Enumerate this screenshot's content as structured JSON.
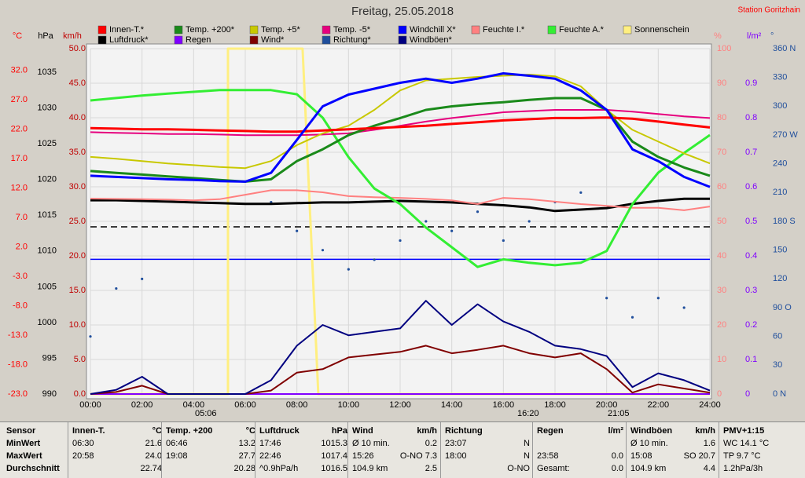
{
  "chart_data": {
    "type": "line",
    "title": "Freitag, 25.05.2018",
    "station": "Station Goritzhain",
    "annotations": [
      "05:06",
      "16:20",
      "21:05"
    ],
    "xlim": [
      0,
      24
    ],
    "xticks": [
      {
        "value": 0,
        "label": "00:00"
      },
      {
        "value": 2,
        "label": "02:00"
      },
      {
        "value": 4,
        "label": "04:00"
      },
      {
        "value": 6,
        "label": "06:00"
      },
      {
        "value": 8,
        "label": "08:00"
      },
      {
        "value": 10,
        "label": "10:00"
      },
      {
        "value": 12,
        "label": "12:00"
      },
      {
        "value": 14,
        "label": "14:00"
      },
      {
        "value": 16,
        "label": "16:00"
      },
      {
        "value": 18,
        "label": "18:00"
      },
      {
        "value": 20,
        "label": "20:00"
      },
      {
        "value": 22,
        "label": "22:00"
      },
      {
        "value": 24,
        "label": "24:00"
      }
    ],
    "grid": true,
    "x": [
      0,
      1,
      2,
      3,
      4,
      5,
      6,
      7,
      8,
      9,
      10,
      11,
      12,
      13,
      14,
      15,
      16,
      17,
      18,
      19,
      20,
      21,
      22,
      23,
      24
    ],
    "axes": [
      {
        "name": "°C",
        "color": "#ff0000",
        "side": "left",
        "lim": [
          -23,
          35.7
        ],
        "ticks": [
          {
            "value": -23,
            "label": "-23.0"
          },
          {
            "value": -18,
            "label": "-18.0"
          },
          {
            "value": -13,
            "label": "-13.0"
          },
          {
            "value": -8,
            "label": "-8.0"
          },
          {
            "value": -3,
            "label": "-3.0"
          },
          {
            "value": 2,
            "label": "2.0"
          },
          {
            "value": 7,
            "label": "7.0"
          },
          {
            "value": 12,
            "label": "12.0"
          },
          {
            "value": 17,
            "label": "17.0"
          },
          {
            "value": 22,
            "label": "22.0"
          },
          {
            "value": 27,
            "label": "27.0"
          },
          {
            "value": 32,
            "label": "32.0"
          }
        ]
      },
      {
        "name": "hPa",
        "color": "#000000",
        "side": "left",
        "lim": [
          990,
          1038.3
        ],
        "ticks": [
          990,
          995,
          1000,
          1005,
          1010,
          1015,
          1020,
          1025,
          1030,
          1035
        ]
      },
      {
        "name": "km/h",
        "color": "#c00000",
        "side": "left",
        "lim": [
          0,
          50
        ],
        "ticks": [
          {
            "value": 0,
            "label": "0.0"
          },
          {
            "value": 5,
            "label": "5.0"
          },
          {
            "value": 10,
            "label": "10.0"
          },
          {
            "value": 15,
            "label": "15.0"
          },
          {
            "value": 20,
            "label": "20.0"
          },
          {
            "value": 25,
            "label": "25.0"
          },
          {
            "value": 30,
            "label": "30.0"
          },
          {
            "value": 35,
            "label": "35.0"
          },
          {
            "value": 40,
            "label": "40.0"
          },
          {
            "value": 45,
            "label": "45.0"
          },
          {
            "value": 50,
            "label": "50.0"
          }
        ]
      },
      {
        "name": "%",
        "color": "#ff8080",
        "side": "right",
        "lim": [
          0,
          100
        ],
        "ticks": [
          0,
          10,
          20,
          30,
          40,
          50,
          60,
          70,
          80,
          90,
          100
        ]
      },
      {
        "name": "l/m²",
        "color": "#8000ff",
        "side": "right",
        "lim": [
          0,
          1
        ],
        "ticks": [
          0,
          0.1,
          0.2,
          0.3,
          0.4,
          0.5,
          0.6,
          0.7,
          0.8,
          0.9
        ]
      },
      {
        "name": "°",
        "color": "#1f4e9c",
        "side": "right",
        "lim": [
          0,
          360
        ],
        "ticks": [
          {
            "value": 0,
            "label": "0   N"
          },
          {
            "value": 30,
            "label": "30"
          },
          {
            "value": 60,
            "label": "60"
          },
          {
            "value": 90,
            "label": "90   O"
          },
          {
            "value": 120,
            "label": "120"
          },
          {
            "value": 150,
            "label": "150"
          },
          {
            "value": 180,
            "label": "180 S"
          },
          {
            "value": 210,
            "label": "210"
          },
          {
            "value": 240,
            "label": "240"
          },
          {
            "value": 270,
            "label": "270 W"
          },
          {
            "value": 300,
            "label": "300"
          },
          {
            "value": 330,
            "label": "330"
          },
          {
            "value": 360,
            "label": "360 N"
          }
        ]
      }
    ],
    "reference_lines": [
      {
        "axis": 2,
        "value": 24.2,
        "color": "#000000",
        "dash": true
      },
      {
        "axis": 2,
        "value": 19.5,
        "color": "#0000ff",
        "dash": false
      }
    ],
    "series": [
      {
        "name": "Innen-T.*",
        "color": "#ff0000",
        "axis": 0,
        "width": 3,
        "values": [
          22.2,
          22.1,
          22.0,
          22.0,
          21.9,
          21.8,
          21.7,
          21.6,
          21.6,
          21.8,
          22.0,
          22.2,
          22.4,
          22.6,
          22.9,
          23.2,
          23.5,
          23.7,
          23.9,
          23.9,
          24.0,
          23.8,
          23.3,
          22.8,
          22.3
        ]
      },
      {
        "name": "Temp. +200*",
        "color": "#1a8a1a",
        "axis": 0,
        "width": 3,
        "values": [
          14.9,
          14.6,
          14.3,
          14.0,
          13.7,
          13.4,
          13.1,
          13.5,
          16.6,
          18.6,
          21.0,
          22.6,
          23.9,
          25.3,
          25.9,
          26.3,
          26.6,
          27.0,
          27.3,
          27.3,
          25.3,
          19.9,
          17.3,
          15.5,
          14.1
        ]
      },
      {
        "name": "Temp. +5*",
        "color": "#c8c800",
        "axis": 0,
        "width": 2,
        "values": [
          17.3,
          17.0,
          16.6,
          16.2,
          15.9,
          15.6,
          15.4,
          16.6,
          19.3,
          21.3,
          22.6,
          25.3,
          28.6,
          30.3,
          30.6,
          30.9,
          31.1,
          31.3,
          31.0,
          29.3,
          25.3,
          21.9,
          19.9,
          17.9,
          16.2
        ]
      },
      {
        "name": "Temp. -5*",
        "color": "#e6007e",
        "axis": 0,
        "width": 2,
        "values": [
          21.5,
          21.4,
          21.3,
          21.2,
          21.2,
          21.1,
          21.0,
          21.0,
          21.0,
          21.1,
          21.3,
          21.9,
          22.6,
          23.3,
          23.9,
          24.4,
          24.9,
          25.1,
          25.3,
          25.3,
          25.3,
          25.0,
          24.6,
          24.2,
          23.9
        ]
      },
      {
        "name": "Windchill X*",
        "color": "#0000ff",
        "axis": 0,
        "width": 3,
        "values": [
          14.1,
          13.9,
          13.7,
          13.5,
          13.4,
          13.2,
          13.1,
          14.6,
          20.2,
          25.9,
          27.9,
          28.9,
          29.9,
          30.6,
          29.9,
          30.6,
          31.5,
          31.1,
          30.6,
          28.6,
          25.3,
          18.6,
          16.6,
          13.9,
          12.2
        ]
      },
      {
        "name": "Feuchte I.*",
        "color": "#ff8080",
        "axis": 3,
        "width": 2,
        "values": [
          56.6,
          56.5,
          56.4,
          56.3,
          56.1,
          56.4,
          57.7,
          59.0,
          59.0,
          58.4,
          57.3,
          57.0,
          56.8,
          56.5,
          56.1,
          55.0,
          56.8,
          56.4,
          55.7,
          55.0,
          54.5,
          53.9,
          53.9,
          53.2,
          54.3
        ]
      },
      {
        "name": "Feuchte A.*",
        "color": "#33ee33",
        "axis": 3,
        "width": 3,
        "values": [
          85.0,
          85.7,
          86.4,
          87.0,
          87.5,
          88.0,
          88.0,
          88.0,
          86.8,
          80.0,
          68.6,
          59.5,
          55.0,
          48.2,
          42.5,
          36.8,
          39.0,
          38.0,
          37.3,
          38.0,
          41.4,
          55.0,
          64.1,
          69.8,
          75.0
        ]
      },
      {
        "name": "Sonnenschein",
        "color": "#ffef80",
        "axis": 3,
        "width": 3,
        "x": [
          0,
          5.33,
          5.33,
          8.22,
          8.83,
          24
        ],
        "values": [
          0,
          0,
          100,
          100,
          0,
          0
        ]
      },
      {
        "name": "Luftdruck*",
        "color": "#000000",
        "axis": 1,
        "width": 3,
        "values": [
          1017.1,
          1017.1,
          1017.0,
          1016.9,
          1016.8,
          1016.7,
          1016.6,
          1016.6,
          1016.7,
          1016.8,
          1016.8,
          1016.9,
          1017.0,
          1016.9,
          1016.8,
          1016.6,
          1016.4,
          1016.1,
          1015.6,
          1015.8,
          1016.0,
          1016.6,
          1017.0,
          1017.3,
          1017.3
        ]
      },
      {
        "name": "Regen",
        "color": "#8000ff",
        "axis": 4,
        "width": 2,
        "values": [
          0,
          0,
          0,
          0,
          0,
          0,
          0,
          0,
          0,
          0,
          0,
          0,
          0,
          0,
          0,
          0,
          0,
          0,
          0,
          0,
          0,
          0,
          0,
          0,
          0
        ]
      },
      {
        "name": "Wind*",
        "color": "#800000",
        "axis": 2,
        "width": 2,
        "values": [
          0.0,
          0.3,
          1.2,
          0.0,
          0.0,
          0.0,
          0.0,
          0.5,
          3.1,
          3.6,
          5.3,
          5.7,
          6.1,
          7.0,
          5.9,
          6.4,
          7.0,
          5.9,
          5.3,
          5.9,
          3.6,
          0.2,
          1.4,
          0.8,
          0.2
        ]
      },
      {
        "name": "Richtung*",
        "color": "#1f4e9c",
        "axis": 5,
        "style": "dots",
        "values": [
          60,
          110,
          120,
          null,
          null,
          null,
          null,
          200,
          170,
          150,
          130,
          140,
          160,
          180,
          170,
          190,
          160,
          180,
          200,
          210,
          100,
          80,
          100,
          90,
          null
        ]
      },
      {
        "name": "Windböen*",
        "color": "#000080",
        "axis": 2,
        "width": 2,
        "values": [
          0.0,
          0.6,
          2.5,
          0.0,
          0.0,
          0.0,
          0.0,
          2.0,
          7.0,
          10.0,
          8.5,
          9.0,
          9.5,
          13.5,
          10.0,
          13.0,
          10.5,
          9.0,
          7.0,
          6.5,
          5.5,
          1.0,
          3.0,
          2.0,
          0.5
        ]
      }
    ]
  },
  "stats": {
    "labels": [
      "Sensor",
      "MinWert",
      "MaxWert",
      "Durchschnitt"
    ],
    "groups": [
      {
        "title": "Innen-T.",
        "unit": "°C",
        "rows": [
          [
            "06:30",
            "21.6"
          ],
          [
            "20:58",
            "24.0"
          ],
          [
            null,
            "22.74"
          ]
        ]
      },
      {
        "title": "Temp. +200",
        "unit": "°C",
        "rows": [
          [
            "06:46",
            "13.2"
          ],
          [
            "19:08",
            "27.7"
          ],
          [
            null,
            "20.28"
          ]
        ]
      },
      {
        "title": "Luftdruck",
        "unit": "hPa",
        "rows": [
          [
            "17:46",
            "1015.3"
          ],
          [
            "22:46",
            "1017.4"
          ],
          [
            "^0.9hPa/h",
            "1016.5"
          ]
        ]
      },
      {
        "title": "Wind",
        "unit": "km/h",
        "rows": [
          [
            "Ø 10 min.",
            "0.2"
          ],
          [
            "15:26",
            "O-NO 7.3"
          ],
          [
            "104.9 km",
            "2.5"
          ]
        ]
      },
      {
        "title": "Richtung",
        "unit": null,
        "rows": [
          [
            "23:07",
            "N"
          ],
          [
            "18:00",
            "N"
          ],
          [
            null,
            "O-NO"
          ]
        ]
      },
      {
        "title": "Regen",
        "unit": "l/m²",
        "rows": [
          [
            null,
            null
          ],
          [
            "23:58",
            "0.0"
          ],
          [
            "Gesamt:",
            "0.0"
          ]
        ]
      },
      {
        "title": "Windböen",
        "unit": "km/h",
        "rows": [
          [
            "Ø 10 min.",
            "1.6"
          ],
          [
            "15:08",
            "SO 20.7"
          ],
          [
            "104.9 km",
            "4.4"
          ]
        ]
      },
      {
        "title": "PMV+1:15",
        "unit": null,
        "rows": [
          [
            "WC 14.1 °C",
            null
          ],
          [
            "TP 9.7 °C",
            null
          ],
          [
            "1.2hPa/3h",
            null
          ]
        ]
      }
    ]
  }
}
